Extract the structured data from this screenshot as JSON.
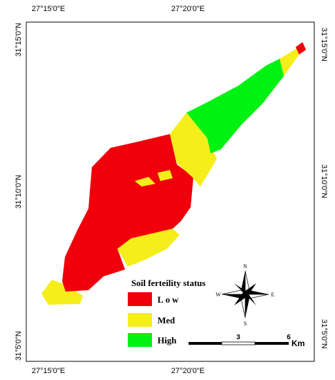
{
  "top_labels": [
    "27°15'0\"E",
    "27°20'0\"E",
    "31°15'0\"N"
  ],
  "bottom_labels": [
    "27°15'0\"E",
    "27°20'0\"E",
    "31°5'0\"N"
  ],
  "left_labels": [
    "31°15'0\"N",
    "31°10'0\"N",
    "31°5'0\"N"
  ],
  "right_labels": [
    "31°10'0\"N"
  ],
  "legend": {
    "title": "Soil ferteility status",
    "items": [
      "Low",
      "Med",
      "High"
    ]
  },
  "compass": {
    "n": "N",
    "s": "S",
    "e": "E",
    "w": "W"
  },
  "scale_bar": {
    "ticks": [
      "3",
      "6"
    ],
    "unit": "Km"
  }
}
